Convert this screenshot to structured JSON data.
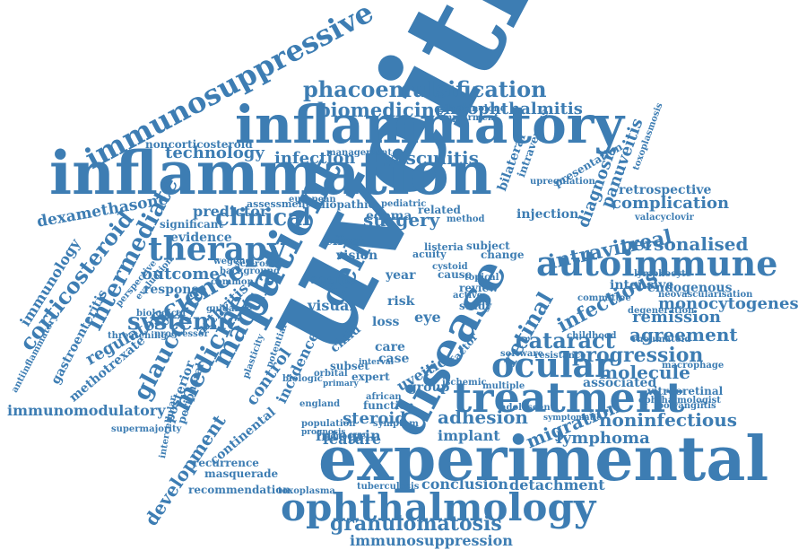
{
  "color": "#3d7db3",
  "words": [
    "uveitis",
    "experimental",
    "inflammation",
    "inflammatory",
    "disease",
    "patient",
    "treatment",
    "ophthalmology",
    "autoimmune",
    "immunosuppressive",
    "therapy",
    "ocular",
    "phacoemulsification",
    "biomedicine",
    "endophthalmitis",
    "cell",
    "macular",
    "medicine",
    "glaucoma",
    "science",
    "retinal",
    "cataract",
    "progression",
    "noninfectious",
    "intermediate",
    "systemic",
    "clinical",
    "technology",
    "infection",
    "vasculitis",
    "corticosteroid",
    "dexamethasone",
    "intravitreal",
    "personalised",
    "infectious",
    "granulomatosis",
    "immunosuppression",
    "development",
    "continental",
    "immunomodulatory",
    "adhesion",
    "migration",
    "lymphoma",
    "steroid",
    "integrin",
    "feature",
    "implant",
    "conclusion",
    "detachment",
    "recommendation",
    "masquerade",
    "recurrence",
    "posterior",
    "regulatory",
    "methotrexate",
    "gastroenteritis",
    "immunology",
    "outcome",
    "response",
    "evidence",
    "predictor",
    "significant",
    "noncorticosteroid",
    "visual",
    "surgery",
    "edema",
    "vision",
    "effect",
    "eye",
    "group",
    "molecule",
    "associated",
    "agreement",
    "remission",
    "complication",
    "retrospective",
    "monocytogenes",
    "endogenous",
    "intensive",
    "lymphocyte",
    "macrophage",
    "vitreoretinal",
    "ophthalmologist",
    "rheumatoid",
    "diagnosis",
    "panuveitis",
    "presentation",
    "injection",
    "arthritis",
    "incidence",
    "control",
    "child",
    "care",
    "case",
    "loss",
    "risk",
    "uveitic",
    "factor",
    "study",
    "review",
    "cause",
    "change",
    "acuity",
    "european",
    "idiopathic",
    "pediatric",
    "related",
    "method",
    "subject",
    "fluocinolone",
    "management",
    "assessment",
    "supermajority",
    "threatening",
    "progressor",
    "intercellular",
    "peripheral",
    "biologic",
    "orbital",
    "expert",
    "african",
    "ischemic",
    "multiple",
    "adolescent",
    "software",
    "resistance",
    "polyangiitis",
    "valacyclovir",
    "toxoplasmosis",
    "upregulation",
    "committee",
    "neovascularisation",
    "childhood",
    "degeneration",
    "england",
    "population",
    "prognosis",
    "monocyte",
    "function",
    "symptom",
    "year",
    "tuberculosis",
    "toxoplasma",
    "symptomatic",
    "antiinflammatory",
    "perspective",
    "evaluation",
    "biological",
    "wegener",
    "sclerosis",
    "background",
    "common",
    "plasticity",
    "potential",
    "listeria",
    "agent",
    "cystoid",
    "subset",
    "active",
    "topical",
    "primary",
    "interval",
    "guidance",
    "impairment",
    "bilateral",
    "intravenous"
  ]
}
